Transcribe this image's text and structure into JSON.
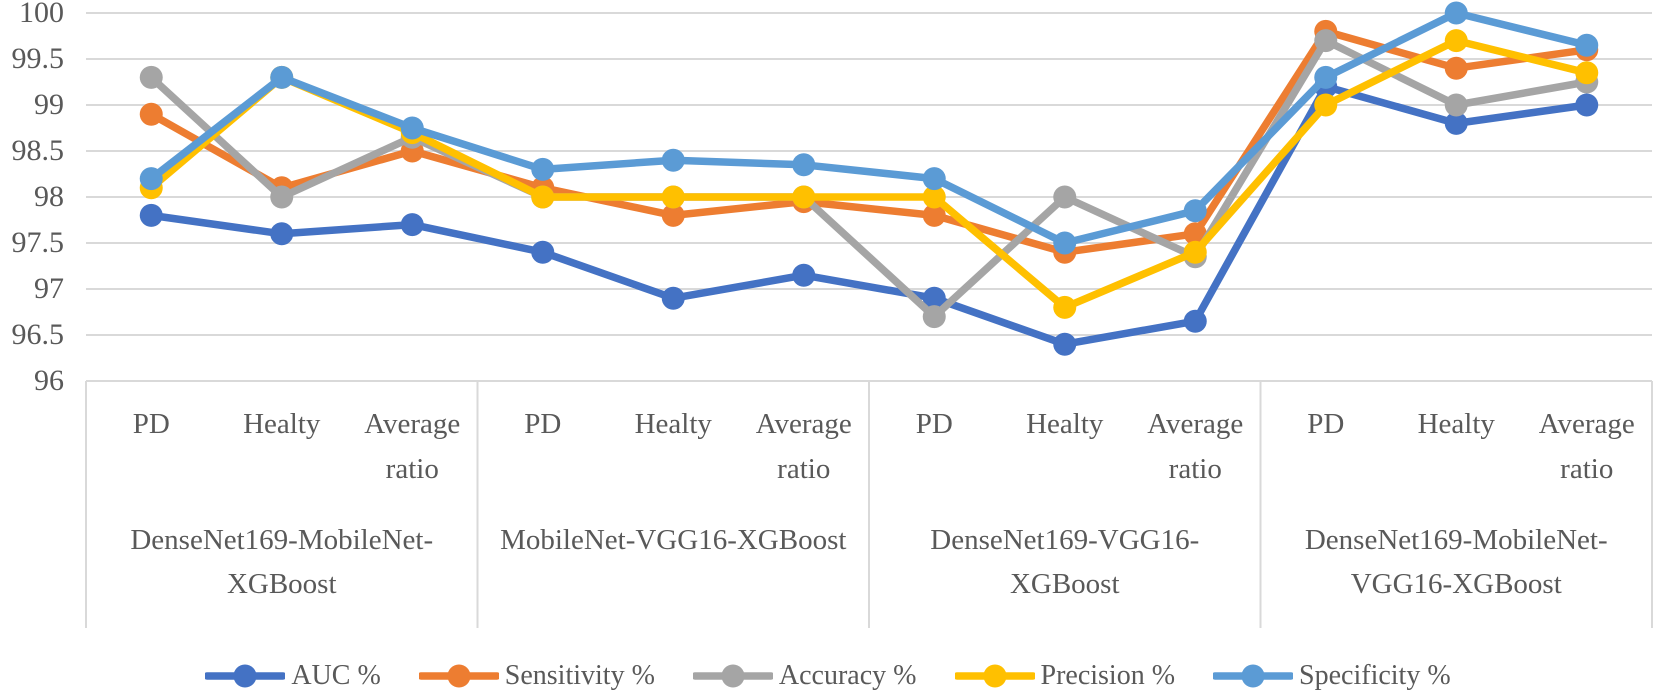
{
  "chart_data": {
    "type": "line",
    "title": "",
    "grid": true,
    "legend_position": "bottom",
    "text_color": "#595959",
    "grid_color": "#D9D9D9",
    "y_axis": {
      "min": 96,
      "max": 100,
      "step": 0.5,
      "tick_labels": [
        "100",
        "99.5",
        "99",
        "98.5",
        "98",
        "97.5",
        "97",
        "96.5",
        "96"
      ]
    },
    "groups": [
      {
        "label_lines": [
          "DenseNet169-MobileNet-",
          "XGBoost"
        ],
        "categories": [
          "PD",
          "Healty",
          "Average ratio"
        ]
      },
      {
        "label_lines": [
          "MobileNet-VGG16-XGBoost"
        ],
        "categories": [
          "PD",
          "Healty",
          "Average ratio"
        ]
      },
      {
        "label_lines": [
          "DenseNet169-VGG16-",
          "XGBoost"
        ],
        "categories": [
          "PD",
          "Healty",
          "Average ratio"
        ]
      },
      {
        "label_lines": [
          "DenseNet169-MobileNet-",
          "VGG16-XGBoost"
        ],
        "categories": [
          "PD",
          "Healty",
          "Average ratio"
        ]
      }
    ],
    "series": [
      {
        "name": "AUC %",
        "color": "#4472C4",
        "values": [
          97.8,
          97.6,
          97.7,
          97.4,
          96.9,
          97.15,
          96.9,
          96.4,
          96.65,
          99.2,
          98.8,
          99.0
        ]
      },
      {
        "name": "Sensitivity %",
        "color": "#ED7D31",
        "values": [
          98.9,
          98.1,
          98.5,
          98.1,
          97.8,
          97.95,
          97.8,
          97.4,
          97.6,
          99.8,
          99.4,
          99.6
        ]
      },
      {
        "name": "Accuracy %",
        "color": "#A5A5A5",
        "values": [
          99.3,
          98.0,
          98.65,
          98.0,
          98.0,
          98.0,
          96.7,
          98.0,
          97.35,
          99.7,
          99.0,
          99.25
        ]
      },
      {
        "name": "Precision %",
        "color": "#FFC000",
        "values": [
          98.1,
          99.3,
          98.7,
          98.0,
          98.0,
          98.0,
          98.0,
          96.8,
          97.4,
          99.0,
          99.7,
          99.35
        ]
      },
      {
        "name": "Specificity %",
        "color": "#5B9BD5",
        "values": [
          98.2,
          99.3,
          98.75,
          98.3,
          98.4,
          98.35,
          98.2,
          97.5,
          97.85,
          99.3,
          100.0,
          99.65
        ]
      }
    ]
  }
}
